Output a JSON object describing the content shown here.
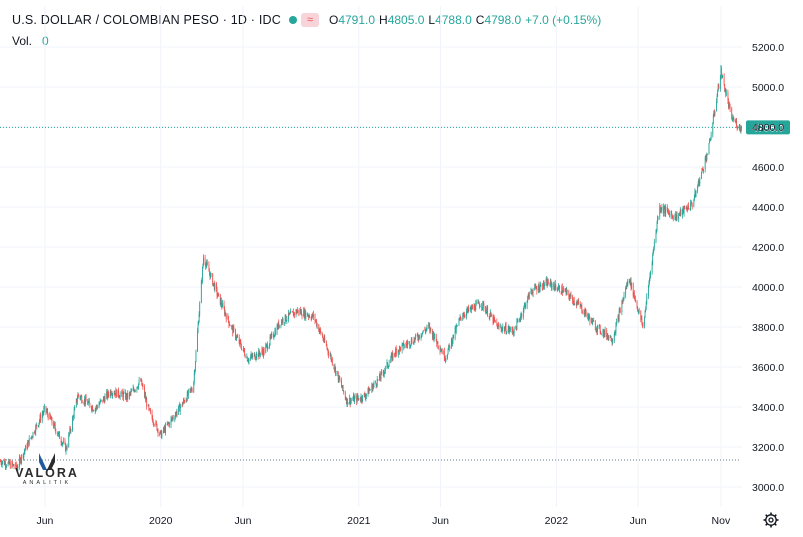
{
  "header": {
    "title": "U.S. DOLLAR / COLOMBIAN PESO · 1D · IDC",
    "wave_icon": "≈",
    "ohlc": [
      {
        "key": "O",
        "value": "4791.0"
      },
      {
        "key": "H",
        "value": "4805.0"
      },
      {
        "key": "L",
        "value": "4788.0"
      },
      {
        "key": "C",
        "value": "4798.0"
      }
    ],
    "change": "+7.0 (+0.15%)"
  },
  "volume": {
    "label": "Vol.",
    "value": "0"
  },
  "colors": {
    "up": "#26a69a",
    "down": "#ef5350",
    "grid": "#f0f3fa",
    "text": "#131722"
  },
  "logo": {
    "name": "VALORA",
    "sub": "ANALITIK"
  },
  "chart_data": {
    "type": "candlestick",
    "title": "U.S. DOLLAR / COLOMBIAN PESO · 1D · IDC",
    "ylim": [
      2920,
      5240
    ],
    "y_ticks": [
      "3000.0",
      "3200.0",
      "3400.0",
      "3600.0",
      "3800.0",
      "4000.0",
      "4200.0",
      "4400.0",
      "4600.0",
      "4800.0",
      "5000.0",
      "5200.0"
    ],
    "x_range": [
      "2019-03-10",
      "2022-12-10"
    ],
    "x_ticks": [
      {
        "date": "2019-06-01",
        "label": "Jun"
      },
      {
        "date": "2020-01-01",
        "label": "2020"
      },
      {
        "date": "2020-06-01",
        "label": "Jun"
      },
      {
        "date": "2021-01-01",
        "label": "2021"
      },
      {
        "date": "2021-06-01",
        "label": "Jun"
      },
      {
        "date": "2022-01-01",
        "label": "2022"
      },
      {
        "date": "2022-06-01",
        "label": "Jun"
      },
      {
        "date": "2022-11-01",
        "label": "Nov"
      }
    ],
    "last_price": {
      "label": "4798.0",
      "value": 4798.0
    },
    "reference_line": 3135,
    "price_path": [
      [
        "2019-03-10",
        3130
      ],
      [
        "2019-04-10",
        3100
      ],
      [
        "2019-05-10",
        3270
      ],
      [
        "2019-06-01",
        3390
      ],
      [
        "2019-07-10",
        3190
      ],
      [
        "2019-08-01",
        3460
      ],
      [
        "2019-09-01",
        3390
      ],
      [
        "2019-10-01",
        3480
      ],
      [
        "2019-11-01",
        3450
      ],
      [
        "2019-11-25",
        3530
      ],
      [
        "2019-12-10",
        3380
      ],
      [
        "2020-01-01",
        3260
      ],
      [
        "2020-02-01",
        3380
      ],
      [
        "2020-03-01",
        3500
      ],
      [
        "2020-03-20",
        4150
      ],
      [
        "2020-04-15",
        3960
      ],
      [
        "2020-05-10",
        3800
      ],
      [
        "2020-06-10",
        3640
      ],
      [
        "2020-07-10",
        3680
      ],
      [
        "2020-08-10",
        3830
      ],
      [
        "2020-09-10",
        3880
      ],
      [
        "2020-10-10",
        3850
      ],
      [
        "2020-11-10",
        3650
      ],
      [
        "2020-12-10",
        3430
      ],
      [
        "2021-01-10",
        3450
      ],
      [
        "2021-02-10",
        3550
      ],
      [
        "2021-03-10",
        3680
      ],
      [
        "2021-04-15",
        3740
      ],
      [
        "2021-05-10",
        3800
      ],
      [
        "2021-06-10",
        3650
      ],
      [
        "2021-07-10",
        3860
      ],
      [
        "2021-08-15",
        3920
      ],
      [
        "2021-09-15",
        3800
      ],
      [
        "2021-10-15",
        3780
      ],
      [
        "2021-11-15",
        3980
      ],
      [
        "2021-12-15",
        4020
      ],
      [
        "2022-01-15",
        3980
      ],
      [
        "2022-02-15",
        3900
      ],
      [
        "2022-03-15",
        3800
      ],
      [
        "2022-04-15",
        3740
      ],
      [
        "2022-05-15",
        4050
      ],
      [
        "2022-06-10",
        3800
      ],
      [
        "2022-07-10",
        4400
      ],
      [
        "2022-08-10",
        4350
      ],
      [
        "2022-09-10",
        4420
      ],
      [
        "2022-10-10",
        4700
      ],
      [
        "2022-11-01",
        5080
      ],
      [
        "2022-11-20",
        4850
      ],
      [
        "2022-12-05",
        4798
      ]
    ]
  }
}
